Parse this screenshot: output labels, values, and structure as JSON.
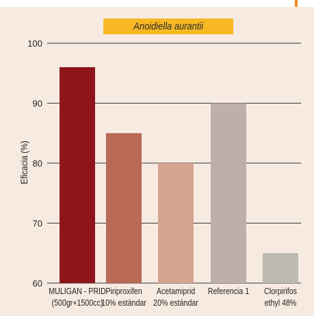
{
  "chart_data": {
    "type": "bar",
    "title": "Anoidiella aurantii",
    "ylabel": "Eficacia (%)",
    "xlabel": "",
    "ylim": [
      60,
      100
    ],
    "yticks": [
      60,
      70,
      80,
      90,
      100
    ],
    "grid": true,
    "categories": [
      {
        "line1": "MULIGAN - PRID",
        "line2": "(500gr+1500cc)"
      },
      {
        "line1": "Piriproxifen",
        "line2": "10% estándar"
      },
      {
        "line1": "Acetamiprid",
        "line2": "20% estándar"
      },
      {
        "line1": "Referencia 1",
        "line2": ""
      },
      {
        "line1": "Clorpirifos",
        "line2": "ethyl 48%"
      }
    ],
    "values": [
      96,
      85,
      80,
      90,
      65
    ],
    "colors": [
      "#8e1519",
      "#b86a55",
      "#d6a38f",
      "#bdb0ab",
      "#bcbab0"
    ]
  },
  "theme": {
    "background": "#f7ebe1",
    "title_band": "#f7b824",
    "accent": "#f28a1e",
    "gridline": "#333333"
  }
}
